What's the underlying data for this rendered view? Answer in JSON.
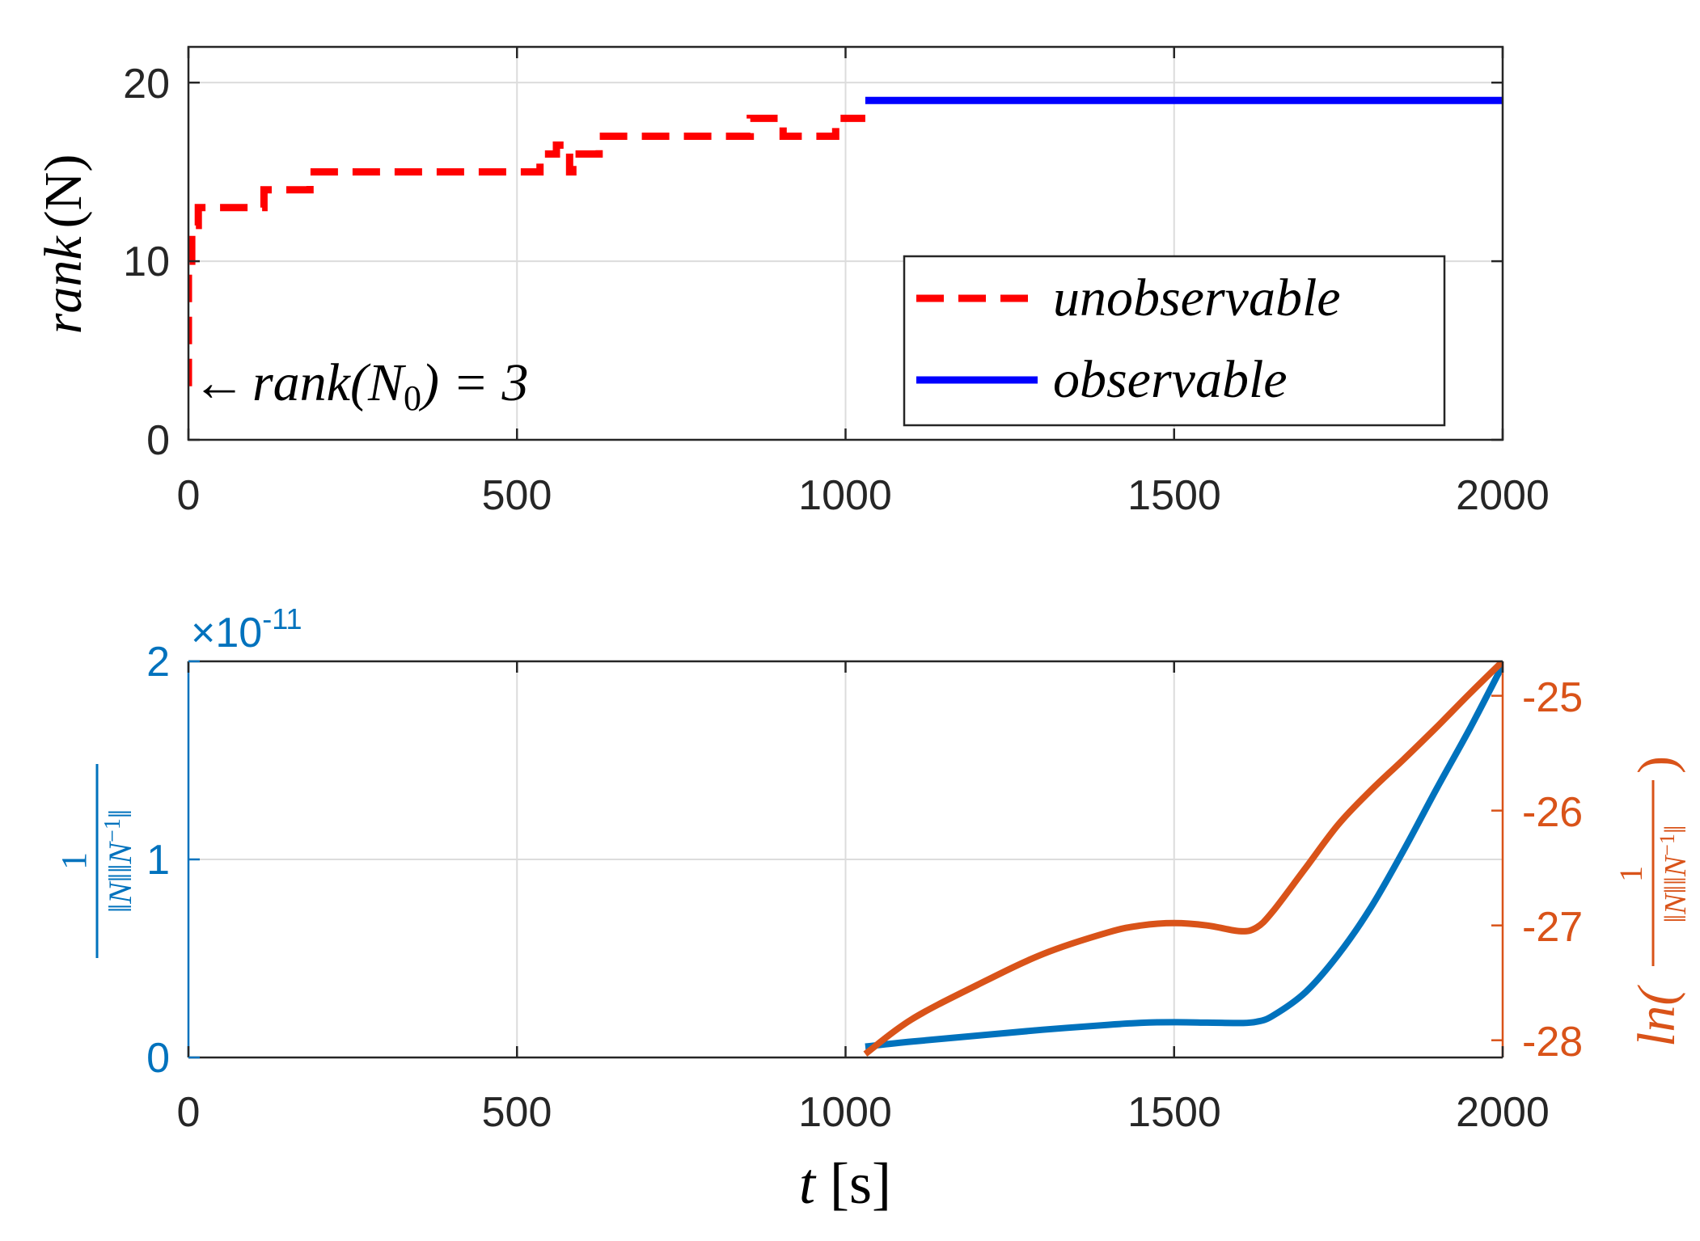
{
  "chart_data": [
    {
      "type": "line",
      "panel": "top",
      "xlim": [
        0,
        2000
      ],
      "ylim": [
        0,
        22
      ],
      "x_ticks": [
        "0",
        "500",
        "1000",
        "1500",
        "2000"
      ],
      "y_ticks": [
        "0",
        "10",
        "20"
      ],
      "ylabel_math": "rank",
      "ylabel_arg": "(N)",
      "grid": true,
      "annotation": {
        "arrow": "←",
        "text_math": "rank",
        "text_paren_open": "(N",
        "text_subscript": "0",
        "text_rest": ") = 3",
        "x": 0,
        "y": 3
      },
      "legend": {
        "placement": "bottom-right",
        "entries": [
          "unobservable",
          "observable"
        ]
      },
      "series": [
        {
          "name": "unobservable",
          "color": "#ff0000",
          "style": "dashed",
          "points": [
            [
              0,
              3
            ],
            [
              0,
              10
            ],
            [
              5,
              10
            ],
            [
              5,
              12
            ],
            [
              15,
              12
            ],
            [
              15,
              13
            ],
            [
              115,
              13
            ],
            [
              115,
              14
            ],
            [
              185,
              14
            ],
            [
              185,
              15
            ],
            [
              535,
              15
            ],
            [
              535,
              16
            ],
            [
              560,
              16
            ],
            [
              560,
              16.5
            ],
            [
              580,
              16.5
            ],
            [
              580,
              15
            ],
            [
              585,
              15
            ],
            [
              585,
              16
            ],
            [
              625,
              16
            ],
            [
              625,
              17
            ],
            [
              855,
              17
            ],
            [
              855,
              18
            ],
            [
              905,
              18
            ],
            [
              905,
              17
            ],
            [
              985,
              17
            ],
            [
              985,
              18
            ],
            [
              1030,
              18
            ]
          ]
        },
        {
          "name": "observable",
          "color": "#0000ff",
          "style": "solid",
          "points": [
            [
              1030,
              19
            ],
            [
              2000,
              19
            ]
          ]
        }
      ]
    },
    {
      "type": "line",
      "panel": "bottom",
      "xlim": [
        0,
        2000
      ],
      "ylim_left": [
        0,
        2
      ],
      "ylim_right": [
        -28.15,
        -24.7
      ],
      "x_ticks": [
        "0",
        "500",
        "1000",
        "1500",
        "2000"
      ],
      "y_ticks_left": [
        "0",
        "1",
        "2"
      ],
      "y_ticks_right": [
        "-28",
        "-27",
        "-26",
        "-25"
      ],
      "exponent_label": "×10",
      "exponent_power": "-11",
      "xlabel_math": "t",
      "xlabel_unit": "[s]",
      "ylabel_left_num": "1",
      "ylabel_left_den": "‖N‖‖N",
      "ylabel_left_den_sup": "−1",
      "ylabel_left_den_end": "‖",
      "ylabel_right_prefix": "ln(",
      "ylabel_right_num": "1",
      "ylabel_right_den": "‖N‖‖N",
      "ylabel_right_den_sup": "−1",
      "ylabel_right_den_end": "‖",
      "ylabel_right_suffix": ")",
      "grid": true,
      "series": [
        {
          "name": "1/(||N|| ||N^-1||) (×10^-11)",
          "axis": "left",
          "color": "#0072bd",
          "x": [
            1030,
            1100,
            1200,
            1300,
            1400,
            1450,
            1500,
            1550,
            1600,
            1625,
            1650,
            1700,
            1750,
            1800,
            1850,
            1900,
            1950,
            2000
          ],
          "y": [
            0.055,
            0.08,
            0.11,
            0.14,
            0.165,
            0.175,
            0.178,
            0.176,
            0.174,
            0.18,
            0.21,
            0.33,
            0.52,
            0.76,
            1.05,
            1.36,
            1.66,
            1.98
          ]
        },
        {
          "name": "ln(1/(||N|| ||N^-1||))",
          "axis": "right",
          "color": "#d95319",
          "x": [
            1030,
            1100,
            1200,
            1300,
            1400,
            1450,
            1500,
            1550,
            1600,
            1625,
            1650,
            1700,
            1750,
            1800,
            1850,
            1900,
            1950,
            2000
          ],
          "y": [
            -28.12,
            -27.82,
            -27.52,
            -27.25,
            -27.06,
            -27.0,
            -26.98,
            -27.0,
            -27.05,
            -27.02,
            -26.88,
            -26.5,
            -26.12,
            -25.82,
            -25.55,
            -25.27,
            -24.98,
            -24.7
          ]
        }
      ]
    }
  ]
}
